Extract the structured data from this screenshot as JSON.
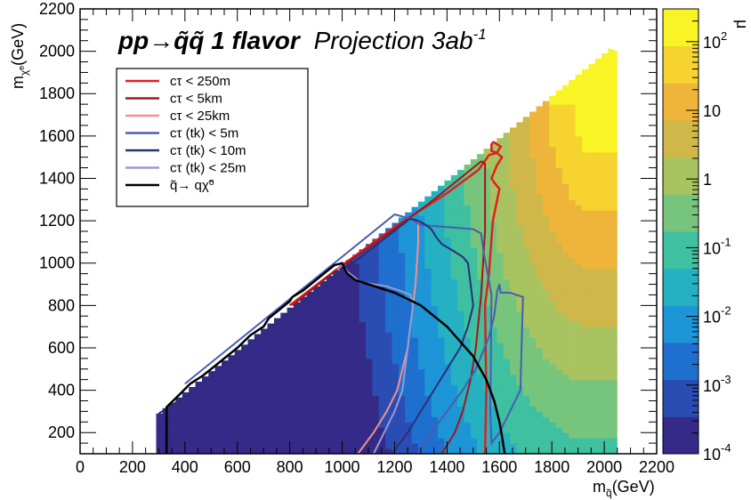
{
  "chart_data": {
    "type": "heatmap",
    "title": {
      "bold_part": "pp→q̃q̃ 1 flavor",
      "italic_part": "Projection 3ab",
      "superscript": "-1"
    },
    "xlabel": "m",
    "xlabel_sub": "q̃",
    "xlabel_unit": "(GeV)",
    "ylabel": "m",
    "ylabel_sub": "χ̃⁰",
    "ylabel_unit": "(GeV)",
    "zlabel": "μ",
    "xlim": [
      0,
      2200
    ],
    "ylim": [
      100,
      2200
    ],
    "x_ticks": [
      "0",
      "200",
      "400",
      "600",
      "800",
      "1000",
      "1200",
      "1400",
      "1600",
      "1800",
      "2000",
      "2200"
    ],
    "y_ticks": [
      "200",
      "400",
      "600",
      "800",
      "1000",
      "1200",
      "1400",
      "1600",
      "1800",
      "2000",
      "2200"
    ],
    "z_scale": "log",
    "z_range": [
      0.0001,
      300
    ],
    "z_tick_labels": [
      {
        "base": "10",
        "exp": "2",
        "value": 100
      },
      {
        "base": "10",
        "exp": "",
        "value": 10
      },
      {
        "base": "1",
        "exp": "",
        "value": 1
      },
      {
        "base": "10",
        "exp": "-1",
        "value": 0.1
      },
      {
        "base": "10",
        "exp": "-2",
        "value": 0.01
      },
      {
        "base": "10",
        "exp": "-3",
        "value": 0.001
      },
      {
        "base": "10",
        "exp": "-4",
        "value": 0.0001
      }
    ],
    "colormap": [
      "#352a87",
      "#2a4db3",
      "#1f6fcf",
      "#1d95d6",
      "#25b1c2",
      "#3fc0a0",
      "#77c57c",
      "#a9c360",
      "#cfb74a",
      "#efb53a",
      "#f6d32e",
      "#f9f425"
    ],
    "region": {
      "x_min": 290,
      "x_max": 2050,
      "y_min": 100,
      "diagonal": {
        "x0": 290,
        "y0": 290,
        "x1": 2000,
        "y1": 2000
      }
    },
    "legend_position": "top-left",
    "series": [
      {
        "name": "cτ < 250m",
        "color": "#dd2020",
        "width": 2.5,
        "x": [
          1545,
          1550,
          1545,
          1560,
          1575,
          1600,
          1580,
          1570,
          1580,
          1590,
          1600,
          1610,
          1590,
          1570,
          1570,
          1575,
          1580,
          1605,
          1590,
          1560,
          1520,
          1400,
          1200,
          1000,
          800
        ],
        "y": [
          100,
          400,
          800,
          950,
          1200,
          1350,
          1380,
          1400,
          1430,
          1460,
          1480,
          1500,
          1520,
          1530,
          1560,
          1570,
          1570,
          1550,
          1520,
          1510,
          1440,
          1330,
          1170,
          990,
          800
        ]
      },
      {
        "name": "cτ < 5km",
        "color": "#a01818",
        "width": 2,
        "x": [
          1380,
          1430,
          1460,
          1490,
          1510,
          1530,
          1545,
          1545,
          1530,
          1330,
          1120,
          960,
          810
        ],
        "y": [
          100,
          200,
          300,
          450,
          600,
          850,
          1150,
          1470,
          1480,
          1280,
          1090,
          950,
          800
        ]
      },
      {
        "name": "cτ < 25km",
        "color": "#f29090",
        "width": 2,
        "x": [
          1060,
          1120,
          1170,
          1210,
          1250,
          1270,
          1280,
          1285,
          1290,
          1290
        ],
        "y": [
          100,
          200,
          300,
          400,
          600,
          800,
          900,
          1000,
          1100,
          1200
        ]
      },
      {
        "name": "cτ (tk) <  5m",
        "color": "#4a5cb0",
        "width": 2,
        "x": [
          1290,
          1340,
          1400,
          1460,
          1510,
          1560,
          1580,
          1590,
          1590,
          1600,
          1605,
          1640,
          1690,
          1680,
          1640,
          1600,
          1570,
          1565,
          1570,
          1540,
          1530,
          1500,
          1400,
          1300,
          1260,
          1200,
          1000,
          800,
          600,
          400
        ],
        "y": [
          100,
          200,
          300,
          400,
          500,
          650,
          750,
          850,
          860,
          900,
          860,
          860,
          840,
          400,
          300,
          200,
          150,
          300,
          850,
          1050,
          1140,
          1160,
          1170,
          1180,
          1210,
          1230,
          1030,
          830,
          630,
          430
        ]
      },
      {
        "name": "cτ (tk) < 10m",
        "color": "#28307a",
        "width": 2,
        "x": [
          1190,
          1250,
          1300,
          1350,
          1400,
          1450,
          1480,
          1500,
          1490,
          1480,
          1460,
          1420,
          1380,
          1360,
          1340,
          1320,
          1290,
          1260,
          1000,
          800,
          600,
          400,
          300
        ],
        "y": [
          100,
          200,
          300,
          400,
          500,
          600,
          700,
          800,
          900,
          1000,
          1030,
          1060,
          1090,
          1120,
          1160,
          1180,
          1200,
          1210,
          960,
          770,
          570,
          370,
          290
        ]
      },
      {
        "name": "cτ (tk) < 25m",
        "color": "#9a9ad4",
        "width": 2,
        "x": [
          1120,
          1160,
          1200,
          1230,
          1240,
          1250,
          1260,
          1270,
          1260,
          1220,
          1170,
          1120,
          1070,
          1050,
          1030,
          1020,
          1000,
          980
        ],
        "y": [
          100,
          200,
          300,
          400,
          500,
          600,
          700,
          800,
          850,
          870,
          890,
          900,
          910,
          930,
          950,
          960,
          990,
          970
        ]
      },
      {
        "name": "q̃→ qχ̃⁰",
        "color": "#000000",
        "width": 2.5,
        "x": [
          330,
          330,
          380,
          420,
          470,
          520,
          560,
          600,
          650,
          700,
          720,
          760,
          800,
          810,
          850,
          900,
          940,
          970,
          1000,
          1010,
          1020,
          1050,
          1100,
          1200,
          1300,
          1400,
          1500,
          1550,
          1580,
          1600,
          1610,
          1620
        ],
        "y": [
          100,
          320,
          380,
          430,
          470,
          520,
          560,
          600,
          660,
          700,
          740,
          780,
          820,
          840,
          870,
          920,
          960,
          990,
          1000,
          970,
          950,
          920,
          900,
          860,
          800,
          700,
          560,
          450,
          350,
          250,
          180,
          100
        ]
      }
    ]
  }
}
